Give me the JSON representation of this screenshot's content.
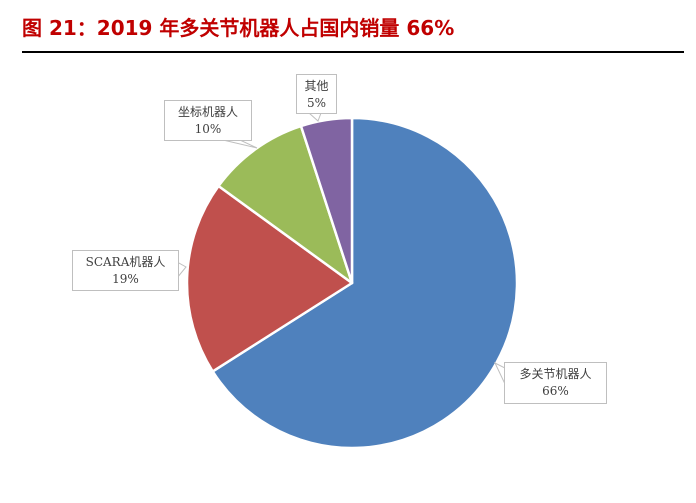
{
  "header": {
    "title": "图 21：2019 年多关节机器人占国内销量 66%"
  },
  "chart_data": {
    "type": "pie",
    "title": "2019 年多关节机器人占国内销量 66%",
    "figure_label": "图 21",
    "start_angle_deg": 0,
    "direction": "clockwise",
    "slices": [
      {
        "label": "多关节机器人",
        "value": 66,
        "display": "66%",
        "color": "#4f81bd"
      },
      {
        "label": "SCARA机器人",
        "value": 19,
        "display": "19%",
        "color": "#c0504d"
      },
      {
        "label": "坐标机器人",
        "value": 10,
        "display": "10%",
        "color": "#9bbb59"
      },
      {
        "label": "其他",
        "value": 5,
        "display": "5%",
        "color": "#8064a2"
      }
    ],
    "legend": "none (data callout labels)"
  }
}
